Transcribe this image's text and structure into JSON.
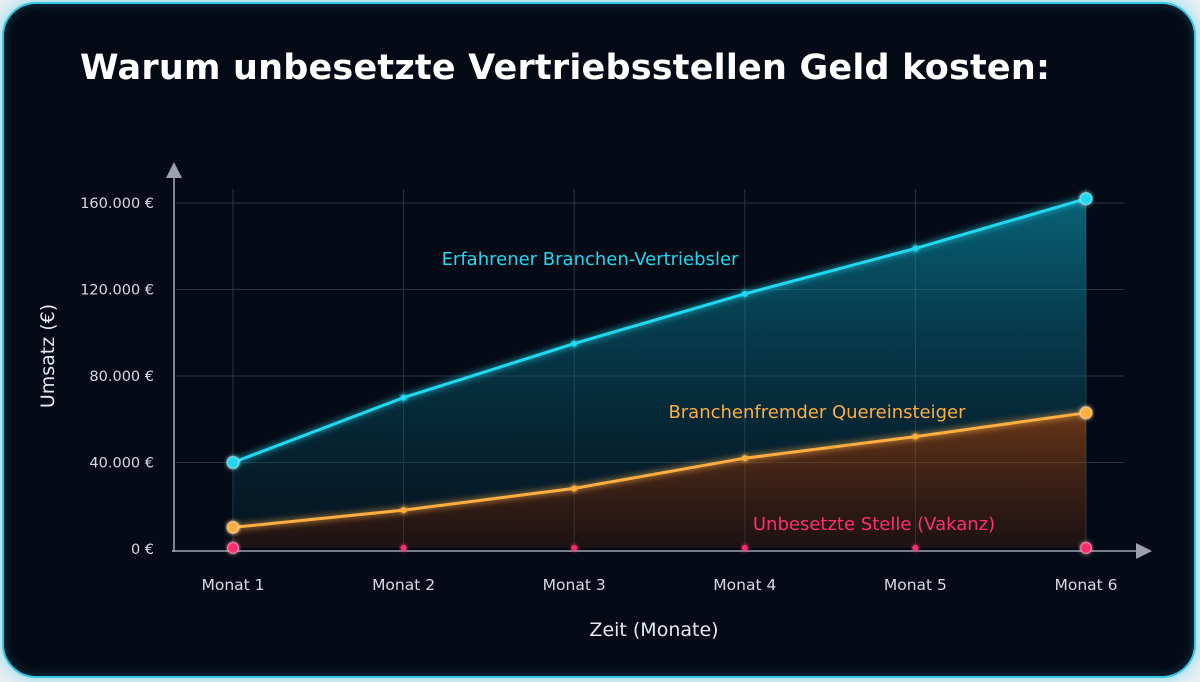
{
  "title": "Warum unbesetzte Vertriebsstellen Geld kosten:",
  "chart_data": {
    "type": "line",
    "title": "Warum unbesetzte Vertriebsstellen Geld kosten:",
    "xlabel": "Zeit (Monate)",
    "ylabel": "Umsatz (€)",
    "categories": [
      "Monat 1",
      "Monat 2",
      "Monat 3",
      "Monat 4",
      "Monat 5",
      "Monat 6"
    ],
    "y_ticks": [
      0,
      40000,
      80000,
      120000,
      160000
    ],
    "y_tick_labels": [
      "0 €",
      "40.000 €",
      "80.000 €",
      "120.000 €",
      "160.000 €"
    ],
    "ylim": [
      0,
      160000
    ],
    "grid": true,
    "series": [
      {
        "name": "Erfahrener Branchen-Vertriebsler",
        "values": [
          40000,
          70000,
          95000,
          118000,
          139000,
          162000
        ],
        "color": "#22d8f0"
      },
      {
        "name": "Branchenfremder Quereinsteiger",
        "values": [
          10000,
          18000,
          28000,
          42000,
          52000,
          63000
        ],
        "color": "#ffae42"
      },
      {
        "name": "Unbesetzte Stelle (Vakanz)",
        "values": [
          500,
          500,
          500,
          500,
          500,
          500
        ],
        "color": "#ff2f6e"
      }
    ]
  }
}
